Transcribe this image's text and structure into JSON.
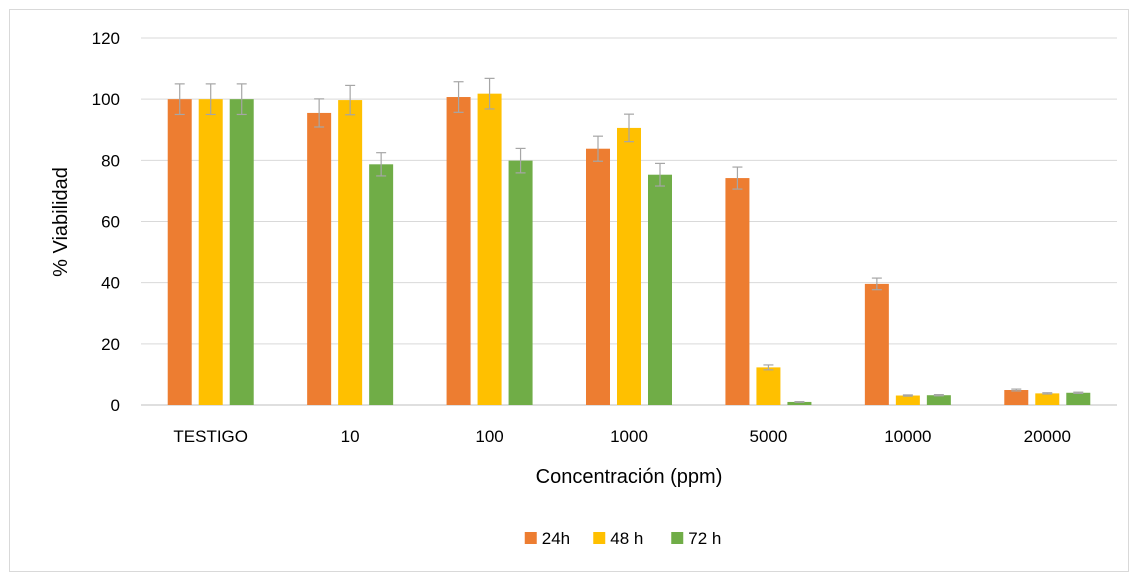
{
  "chart_data": {
    "type": "bar",
    "title": "",
    "xlabel": "Concentración (ppm)",
    "ylabel": "% Viabilidad",
    "ylim": [
      0,
      120
    ],
    "yticks": [
      0,
      20,
      40,
      60,
      80,
      100,
      120
    ],
    "grid": true,
    "legend_position": "bottom",
    "categories": [
      "TESTIGO",
      "10",
      "100",
      "1000",
      "5000",
      "10000",
      "20000"
    ],
    "series": [
      {
        "name": "24h",
        "color": "#ED7D31",
        "values": [
          100,
          95.5,
          100.7,
          83.8,
          74.2,
          39.6,
          4.9
        ],
        "errors": [
          5,
          4.6,
          5,
          4.1,
          3.6,
          1.9,
          0.3
        ]
      },
      {
        "name": "48 h",
        "color": "#FFC000",
        "values": [
          100,
          99.7,
          101.8,
          90.6,
          12.3,
          3.1,
          3.8
        ],
        "errors": [
          5,
          4.8,
          5,
          4.5,
          0.8,
          0.2,
          0.2
        ]
      },
      {
        "name": "72 h",
        "color": "#70AD47",
        "values": [
          100,
          78.7,
          79.9,
          75.3,
          1,
          3.2,
          4
        ],
        "errors": [
          5,
          3.8,
          4,
          3.7,
          0.1,
          0.2,
          0.2
        ]
      }
    ]
  }
}
